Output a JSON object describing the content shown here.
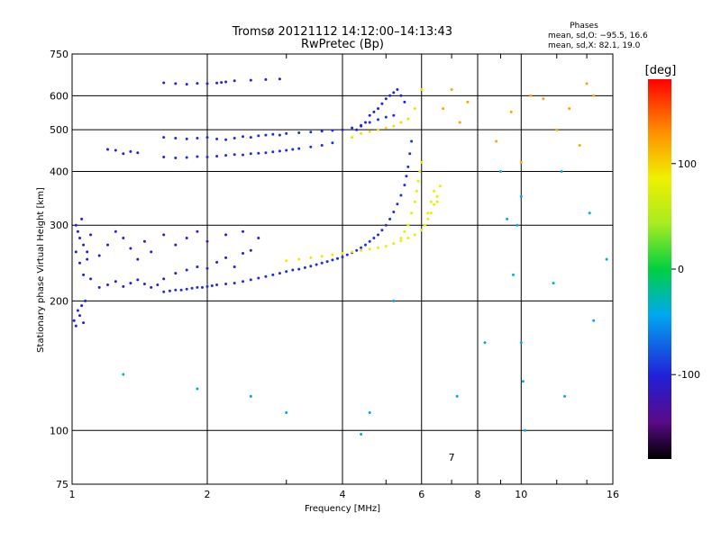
{
  "chart_data": {
    "type": "scatter",
    "title": "Tromsø 20121112 14:12:00–14:13:43",
    "subtitle": "RwPretec (Bp)",
    "stats": {
      "heading": "Phases",
      "line_o": "mean, sd,O: −95.5, 16.6",
      "line_x": "mean, sd,X:  82.1, 19.0"
    },
    "xlabel": "Frequency [MHz]",
    "ylabel": "Stationary phase Virtual Height [km]",
    "x_scale": "log",
    "y_scale": "log",
    "xlim": [
      1,
      16
    ],
    "ylim": [
      75,
      750
    ],
    "x_ticks": [
      {
        "value": 1,
        "label": "1"
      },
      {
        "value": 2,
        "label": "2"
      },
      {
        "value": 4,
        "label": "4"
      },
      {
        "value": 6,
        "label": "6"
      },
      {
        "value": 8,
        "label": "8"
      },
      {
        "value": 10,
        "label": "10"
      },
      {
        "value": 16,
        "label": "16"
      }
    ],
    "x_minor_ticks": [
      3,
      5,
      7,
      9,
      12,
      14
    ],
    "x_gridlines": [
      2,
      4,
      6,
      8,
      10
    ],
    "extra_x_label": {
      "value": 7,
      "label": "7"
    },
    "y_ticks": [
      {
        "value": 75,
        "label": "75"
      },
      {
        "value": 100,
        "label": "100"
      },
      {
        "value": 200,
        "label": "200"
      },
      {
        "value": 300,
        "label": "300"
      },
      {
        "value": 400,
        "label": "400"
      },
      {
        "value": 500,
        "label": "500"
      },
      {
        "value": 600,
        "label": "600"
      },
      {
        "value": 750,
        "label": "750"
      }
    ],
    "y_gridlines": [
      100,
      200,
      300,
      400,
      500,
      600
    ],
    "grid": true,
    "colorbar": {
      "label": "[deg]",
      "range": [
        -180,
        180
      ],
      "ticks": [
        {
          "value": 100,
          "label": "100"
        },
        {
          "value": 0,
          "label": "0"
        },
        {
          "value": -100,
          "label": "-100"
        }
      ],
      "placement": "right"
    },
    "colors": {
      "grid": "#000000",
      "o_mode": "#1a3cf0",
      "x_mode": "#c8f028",
      "noise": "#20c0e0"
    },
    "traces": [
      {
        "name": "",
        "mode": "O",
        "phase": -95,
        "x": [
          1.6,
          1.65,
          1.7,
          1.75,
          1.8,
          1.85,
          1.9,
          1.95,
          2.0,
          2.05,
          2.1,
          2.2,
          2.3,
          2.4,
          2.5,
          2.6,
          2.7,
          2.8,
          2.9,
          3.0,
          3.1,
          3.2,
          3.3,
          3.4,
          3.5,
          3.6,
          3.7,
          3.8,
          3.9,
          4.0,
          4.1,
          4.2,
          4.3,
          4.4,
          4.5,
          4.6,
          4.7,
          4.8,
          4.9,
          5.0,
          5.1,
          5.2,
          5.3,
          5.4,
          5.5,
          5.55,
          5.6,
          5.65,
          5.7
        ],
        "y": [
          210,
          211,
          212,
          212,
          213,
          214,
          215,
          215,
          216,
          217,
          218,
          219,
          220,
          222,
          224,
          226,
          228,
          230,
          232,
          234,
          236,
          237,
          239,
          241,
          243,
          245,
          247,
          249,
          251,
          253,
          256,
          259,
          262,
          266,
          270,
          275,
          280,
          285,
          292,
          300,
          310,
          322,
          336,
          352,
          372,
          390,
          410,
          440,
          470
        ]
      },
      {
        "name": "",
        "mode": "O",
        "phase": -100,
        "x": [
          1.02,
          1.04,
          1.06,
          1.08,
          1.1,
          1.15,
          1.2,
          1.25,
          1.3,
          1.35,
          1.4,
          1.45,
          1.5,
          1.55,
          1.6,
          1.7,
          1.8,
          1.9,
          2.0,
          2.1,
          2.2,
          2.3,
          2.4,
          2.5
        ],
        "y": [
          260,
          245,
          230,
          250,
          225,
          215,
          218,
          222,
          216,
          220,
          224,
          219,
          215,
          218,
          225,
          232,
          236,
          240,
          238,
          246,
          252,
          240,
          258,
          262
        ]
      },
      {
        "name": "",
        "mode": "O",
        "phase": -105,
        "x": [
          1.02,
          1.03,
          1.04,
          1.05,
          1.06,
          1.08,
          1.1,
          1.15,
          1.2,
          1.25,
          1.3,
          1.35,
          1.4,
          1.45,
          1.5,
          1.6,
          1.7,
          1.8,
          1.9,
          2.0,
          2.2,
          2.4,
          2.6
        ],
        "y": [
          300,
          290,
          280,
          310,
          270,
          260,
          285,
          255,
          270,
          290,
          280,
          265,
          250,
          275,
          260,
          285,
          270,
          280,
          290,
          275,
          285,
          290,
          280
        ]
      },
      {
        "name": "",
        "mode": "O",
        "phase": -100,
        "x": [
          1.01,
          1.02,
          1.03,
          1.04,
          1.05,
          1.06,
          1.07
        ],
        "y": [
          180,
          175,
          190,
          185,
          195,
          178,
          200
        ]
      },
      {
        "name": "",
        "mode": "O",
        "phase": -95,
        "x": [
          1.6,
          1.7,
          1.8,
          1.9,
          2.0,
          2.1,
          2.2,
          2.3,
          2.4,
          2.5,
          2.6,
          2.7,
          2.8,
          2.9,
          3.0,
          3.1,
          3.2,
          3.4,
          3.6,
          3.8
        ],
        "y": [
          432,
          430,
          431,
          433,
          432,
          434,
          436,
          438,
          437,
          440,
          441,
          442,
          444,
          446,
          448,
          450,
          452,
          456,
          460,
          466
        ]
      },
      {
        "name": "",
        "mode": "O",
        "phase": -95,
        "x": [
          1.6,
          1.7,
          1.8,
          1.9,
          2.0,
          2.1,
          2.2,
          2.3,
          2.4,
          2.5,
          2.6,
          2.7,
          2.8,
          2.9,
          3.0,
          3.2,
          3.4,
          3.6,
          3.8,
          4.0,
          4.2,
          4.4,
          4.6,
          4.8,
          5.0,
          5.2
        ],
        "y": [
          480,
          478,
          476,
          478,
          480,
          476,
          474,
          478,
          482,
          480,
          484,
          486,
          488,
          486,
          490,
          492,
          494,
          496,
          498,
          500,
          505,
          512,
          520,
          528,
          535,
          540
        ]
      },
      {
        "name": "",
        "mode": "O",
        "phase": -100,
        "x": [
          1.6,
          1.7,
          1.8,
          1.9,
          2.0,
          2.1,
          2.15,
          2.2,
          2.3,
          2.5,
          2.7,
          2.9
        ],
        "y": [
          643,
          640,
          638,
          641,
          640,
          642,
          644,
          646,
          650,
          652,
          654,
          656
        ]
      },
      {
        "name": "",
        "mode": "O",
        "phase": -100,
        "x": [
          1.2,
          1.25,
          1.3,
          1.35,
          1.4
        ],
        "y": [
          450,
          448,
          440,
          445,
          442
        ]
      },
      {
        "name": "",
        "mode": "O",
        "phase": -100,
        "x": [
          4.3,
          4.4,
          4.5,
          4.6,
          4.7,
          4.8,
          4.9,
          5.0,
          5.1,
          5.2,
          5.3,
          5.4,
          5.5
        ],
        "y": [
          500,
          510,
          520,
          540,
          550,
          560,
          575,
          590,
          600,
          610,
          620,
          600,
          580
        ]
      },
      {
        "name": "",
        "mode": "X",
        "phase": 90,
        "x": [
          3.0,
          3.2,
          3.4,
          3.6,
          3.8,
          4.0,
          4.2,
          4.4,
          4.6,
          4.8,
          5.0,
          5.2,
          5.4,
          5.6,
          5.8,
          6.0,
          6.1,
          6.2,
          6.3,
          6.4,
          6.5,
          6.6
        ],
        "y": [
          248,
          250,
          252,
          254,
          256,
          258,
          260,
          262,
          264,
          266,
          268,
          272,
          276,
          280,
          285,
          292,
          300,
          310,
          320,
          335,
          350,
          370
        ]
      },
      {
        "name": "",
        "mode": "X",
        "phase": 80,
        "x": [
          5.4,
          5.5,
          5.6,
          5.7,
          5.8,
          5.85,
          5.9,
          5.95,
          6.0,
          6.1,
          6.2,
          6.3,
          6.4,
          6.5
        ],
        "y": [
          280,
          290,
          300,
          320,
          340,
          360,
          380,
          400,
          420,
          300,
          320,
          340,
          360,
          340
        ]
      },
      {
        "name": "",
        "mode": "X",
        "phase": 95,
        "x": [
          4.2,
          4.4,
          4.6,
          4.8,
          5.0,
          5.2,
          5.4,
          5.6,
          5.8,
          6.0
        ],
        "y": [
          480,
          490,
          495,
          500,
          505,
          510,
          520,
          530,
          560,
          620
        ]
      },
      {
        "name": "",
        "mode": "noise",
        "phase": -40,
        "x": [
          1.3,
          1.9,
          2.5,
          3.0,
          4.4,
          4.6,
          5.2,
          7.2,
          8.3,
          9.0,
          9.3,
          9.6,
          9.8,
          10.0,
          10.0,
          10.1,
          10.2,
          11.8,
          12.3,
          12.5,
          14.2,
          14.5,
          15.5
        ],
        "y": [
          135,
          125,
          120,
          110,
          98,
          110,
          200,
          120,
          160,
          400,
          310,
          230,
          300,
          350,
          160,
          130,
          100,
          220,
          400,
          120,
          320,
          180,
          250
        ]
      },
      {
        "name": "",
        "mode": "noise",
        "phase": 120,
        "x": [
          6.7,
          7.0,
          7.3,
          7.6,
          8.8,
          9.5,
          10.0,
          10.5,
          11.2,
          12.0,
          12.8,
          13.5,
          14.0,
          14.5
        ],
        "y": [
          560,
          620,
          520,
          580,
          470,
          550,
          420,
          600,
          590,
          500,
          560,
          460,
          640,
          600
        ]
      }
    ]
  }
}
